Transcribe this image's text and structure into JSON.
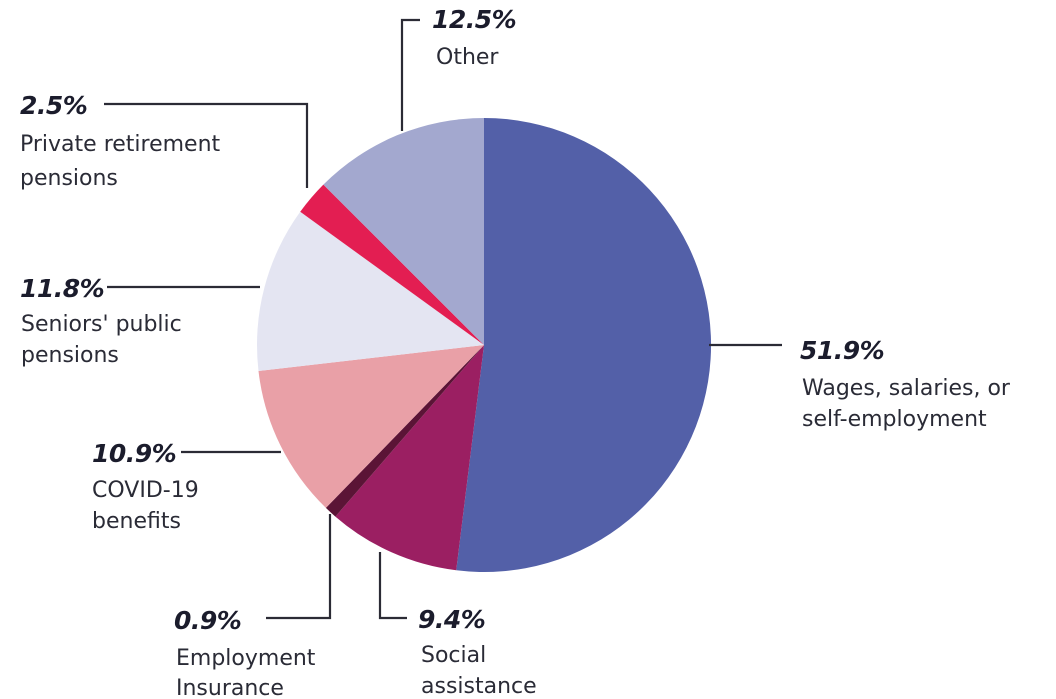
{
  "chart_data": {
    "type": "pie",
    "title": "",
    "slices": [
      {
        "key": "wages",
        "value": 51.9,
        "value_label": "51.9%",
        "label_lines": [
          "Wages, salaries, or",
          "self-employment"
        ],
        "color": "#5360a8"
      },
      {
        "key": "social",
        "value": 9.4,
        "value_label": "9.4%",
        "label_lines": [
          "Social",
          "assistance"
        ],
        "color": "#9b1f62"
      },
      {
        "key": "ei",
        "value": 0.9,
        "value_label": "0.9%",
        "label_lines": [
          "Employment",
          "Insurance"
        ],
        "color": "#5b1436"
      },
      {
        "key": "covid",
        "value": 10.9,
        "value_label": "10.9%",
        "label_lines": [
          "COVID-19",
          "benefits"
        ],
        "color": "#e9a0a7"
      },
      {
        "key": "seniors",
        "value": 11.8,
        "value_label": "11.8%",
        "label_lines": [
          "Seniors' public",
          "pensions"
        ],
        "color": "#e4e5f2"
      },
      {
        "key": "private",
        "value": 2.5,
        "value_label": "2.5%",
        "label_lines": [
          "Private retirement",
          "pensions"
        ],
        "color": "#e31e52"
      },
      {
        "key": "other",
        "value": 12.5,
        "value_label": "12.5%",
        "label_lines": [
          "Other"
        ],
        "color": "#a3a8cf"
      }
    ]
  }
}
